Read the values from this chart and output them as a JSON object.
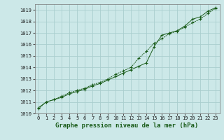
{
  "xlabel": "Graphe pression niveau de la mer (hPa)",
  "background_color": "#cce8e8",
  "grid_color": "#aacece",
  "line_color": "#1a5c1a",
  "xlim": [
    -0.5,
    23.5
  ],
  "ylim": [
    1010,
    1019.5
  ],
  "yticks": [
    1010,
    1011,
    1012,
    1013,
    1014,
    1015,
    1016,
    1017,
    1018,
    1019
  ],
  "xticks": [
    0,
    1,
    2,
    3,
    4,
    5,
    6,
    7,
    8,
    9,
    10,
    11,
    12,
    13,
    14,
    15,
    16,
    17,
    18,
    19,
    20,
    21,
    22,
    23
  ],
  "series1_x": [
    0,
    1,
    2,
    3,
    4,
    5,
    6,
    7,
    8,
    9,
    10,
    11,
    12,
    13,
    14,
    15,
    16,
    17,
    18,
    19,
    20,
    21,
    22,
    23
  ],
  "series1_y": [
    1010.5,
    1011.0,
    1011.2,
    1011.4,
    1011.7,
    1011.9,
    1012.1,
    1012.4,
    1012.6,
    1012.9,
    1013.2,
    1013.5,
    1013.8,
    1014.1,
    1014.4,
    1015.8,
    1016.8,
    1017.0,
    1017.2,
    1017.6,
    1018.2,
    1018.4,
    1018.9,
    1019.2
  ],
  "series2_x": [
    0,
    1,
    2,
    3,
    4,
    5,
    6,
    7,
    8,
    9,
    10,
    11,
    12,
    13,
    14,
    15,
    16,
    17,
    18,
    19,
    20,
    21,
    22,
    23
  ],
  "series2_y": [
    1010.4,
    1011.0,
    1011.2,
    1011.5,
    1011.8,
    1012.0,
    1012.2,
    1012.5,
    1012.7,
    1013.0,
    1013.4,
    1013.7,
    1014.0,
    1014.8,
    1015.4,
    1016.1,
    1016.5,
    1016.95,
    1017.15,
    1017.5,
    1017.9,
    1018.2,
    1018.7,
    1019.15
  ],
  "tick_fontsize": 5,
  "xlabel_fontsize": 6.5,
  "marker_size": 2.5,
  "lw": 0.7
}
